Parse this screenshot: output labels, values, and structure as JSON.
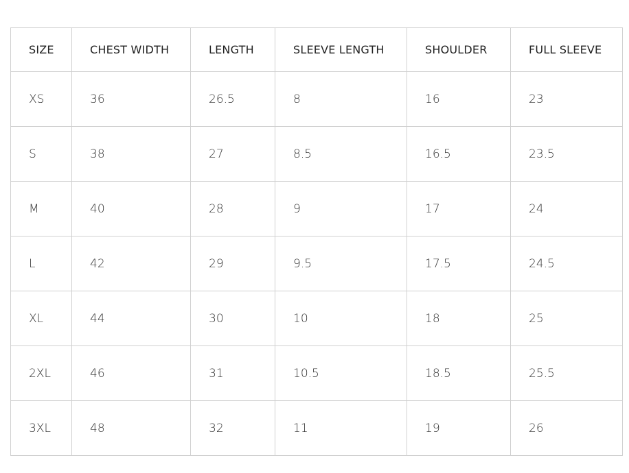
{
  "table": {
    "header": [
      "SIZE",
      "CHEST WIDTH",
      "LENGTH",
      "SLEEVE LENGTH",
      "SHOULDER",
      "FULL SLEEVE"
    ],
    "rows": [
      [
        "XS",
        "36",
        "26.5",
        "8",
        "16",
        "23"
      ],
      [
        "S",
        "38",
        "27",
        "8.5",
        "16.5",
        "23.5"
      ],
      [
        "M",
        "40",
        "28",
        "9",
        "17",
        "24"
      ],
      [
        "L",
        "42",
        "29",
        "9.5",
        "17.5",
        "24.5"
      ],
      [
        "XL",
        "44",
        "30",
        "10",
        "18",
        "25"
      ],
      [
        "2XL",
        "46",
        "31",
        "10.5",
        "18.5",
        "25.5"
      ],
      [
        "3XL",
        "48",
        "32",
        "11",
        "19",
        "26"
      ]
    ]
  }
}
